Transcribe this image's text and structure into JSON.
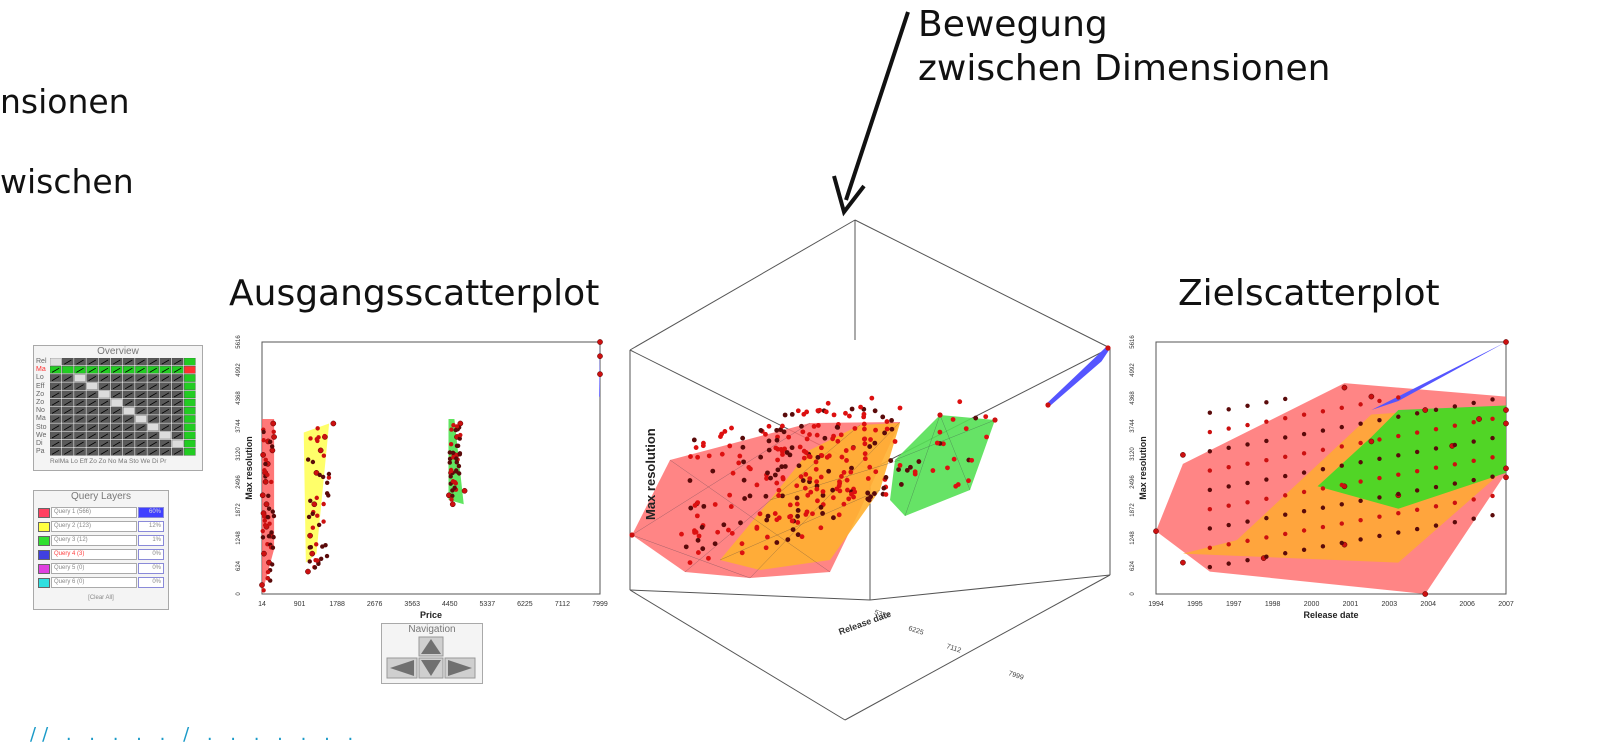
{
  "annotations": {
    "arrow_caption_line1": "Bewegung",
    "arrow_caption_line2": "zwischen Dimensionen",
    "left_fragment_1": "nsionen",
    "left_fragment_2": "wischen",
    "source_title": "Ausgangsscatterplot",
    "target_title": "Zielscatterplot",
    "link_fragment": "//  . .  .  .  .  /  .  .  .  .  .  .  ."
  },
  "overview": {
    "title": "Overview",
    "row_labels": [
      "Rel",
      "Ma",
      "Lo",
      "Eff",
      "Zo",
      "Zo",
      "No",
      "Ma",
      "Sto",
      "We",
      "Di",
      "Pa"
    ],
    "col_labels": "RelMa Lo Eff Zo Zo No Ma Sto We Di Pr",
    "highlight_color": "#22cc22",
    "active_color": "#ff3030"
  },
  "query_layers": {
    "title": "Query Layers",
    "layers": [
      {
        "label": "Query 1 (566)",
        "pct": "60%",
        "color": "#ff4060",
        "fill": "#4040ff"
      },
      {
        "label": "Query 2 (123)",
        "pct": "12%",
        "color": "#ffff40",
        "fill": "#ffffff"
      },
      {
        "label": "Query 3 (12)",
        "pct": "1%",
        "color": "#30e030",
        "fill": "#ffffff"
      },
      {
        "label": "Query 4 (3)",
        "pct": "0%",
        "color": "#4040e0",
        "fill": "#ffffff",
        "active": true
      },
      {
        "label": "Query 5 (0)",
        "pct": "0%",
        "color": "#e040e0",
        "fill": "#ffffff"
      },
      {
        "label": "Query 6 (0)",
        "pct": "0%",
        "color": "#30e0e0",
        "fill": "#ffffff"
      }
    ],
    "clear_all": "[Clear All]"
  },
  "navigation": {
    "title": "Navigation"
  },
  "chart_data": [
    {
      "type": "scatter",
      "title": "",
      "xlabel": "Price",
      "ylabel": "Max resolution",
      "x_ticks": [
        "14",
        "901",
        "1788",
        "2676",
        "3563",
        "4450",
        "5337",
        "6225",
        "7112",
        "7999"
      ],
      "y_ticks": [
        "0",
        "624",
        "1248",
        "1872",
        "2496",
        "3120",
        "3744",
        "4368",
        "4992",
        "5616"
      ],
      "xlim": [
        14,
        7999
      ],
      "ylim": [
        0,
        5616
      ],
      "series": [
        {
          "color": "#ff5555",
          "points": [
            [
              14,
              200
            ],
            [
              60,
              900
            ],
            [
              120,
              1500
            ],
            [
              30,
              2200
            ],
            [
              90,
              2700
            ],
            [
              40,
              3100
            ],
            [
              160,
              3400
            ],
            [
              280,
              3800
            ],
            [
              300,
              3500
            ],
            [
              120,
              2000
            ],
            [
              220,
              1300
            ],
            [
              180,
              700
            ],
            [
              100,
              2500
            ],
            [
              50,
              1800
            ],
            [
              150,
              2900
            ],
            [
              260,
              3200
            ]
          ]
        },
        {
          "color": "#ffff50",
          "points": [
            [
              1100,
              500
            ],
            [
              1150,
              1300
            ],
            [
              1250,
              2000
            ],
            [
              1300,
              2700
            ],
            [
              1400,
              3200
            ],
            [
              1500,
              3500
            ],
            [
              1700,
              3800
            ],
            [
              1200,
              900
            ]
          ]
        },
        {
          "color": "#33e033",
          "points": [
            [
              4430,
              2200
            ],
            [
              4480,
              2700
            ],
            [
              4560,
              3100
            ],
            [
              4620,
              3500
            ],
            [
              4700,
              3800
            ],
            [
              4800,
              2300
            ],
            [
              4520,
              2000
            ]
          ]
        },
        {
          "color": "#5050ff",
          "points": [
            [
              7999,
              4900
            ],
            [
              7999,
              5300
            ],
            [
              7999,
              5616
            ]
          ]
        }
      ]
    },
    {
      "type": "scatter",
      "title": "",
      "xlabel": "Release date",
      "ylabel": "Max resolution",
      "x_ticks": [
        "1994",
        "1995",
        "1997",
        "1998",
        "2000",
        "2001",
        "2003",
        "2004",
        "2006",
        "2007"
      ],
      "y_ticks": [
        "0",
        "624",
        "1248",
        "1872",
        "2496",
        "3120",
        "3744",
        "4368",
        "4992",
        "5616"
      ],
      "xlim": [
        1994,
        2007
      ],
      "ylim": [
        0,
        5616
      ],
      "series": [
        {
          "color": "#ff5555",
          "points": [
            [
              1994,
              1400
            ],
            [
              1995,
              3100
            ],
            [
              2001,
              4600
            ],
            [
              2004,
              0
            ],
            [
              2007,
              3800
            ],
            [
              2007,
              2800
            ]
          ]
        },
        {
          "color": "#ffaa30",
          "points": [
            [
              1995,
              700
            ],
            [
              1998,
              800
            ],
            [
              2001,
              1100
            ],
            [
              2003,
              2200
            ],
            [
              2005,
              3300
            ],
            [
              2007,
              4100
            ]
          ]
        },
        {
          "color": "#33dd22",
          "points": [
            [
              2001,
              2400
            ],
            [
              2002,
              3400
            ],
            [
              2004,
              4100
            ],
            [
              2006,
              3900
            ],
            [
              2007,
              2600
            ]
          ]
        },
        {
          "color": "#5050ff",
          "points": [
            [
              2002,
              4400
            ],
            [
              2007,
              5616
            ]
          ]
        }
      ]
    },
    {
      "type": "scatter",
      "title": "",
      "xlabel": "Release date",
      "ylabel": "Max resolution",
      "axis_tick_labels": [
        "5337",
        "6225",
        "7112",
        "7999"
      ]
    }
  ]
}
